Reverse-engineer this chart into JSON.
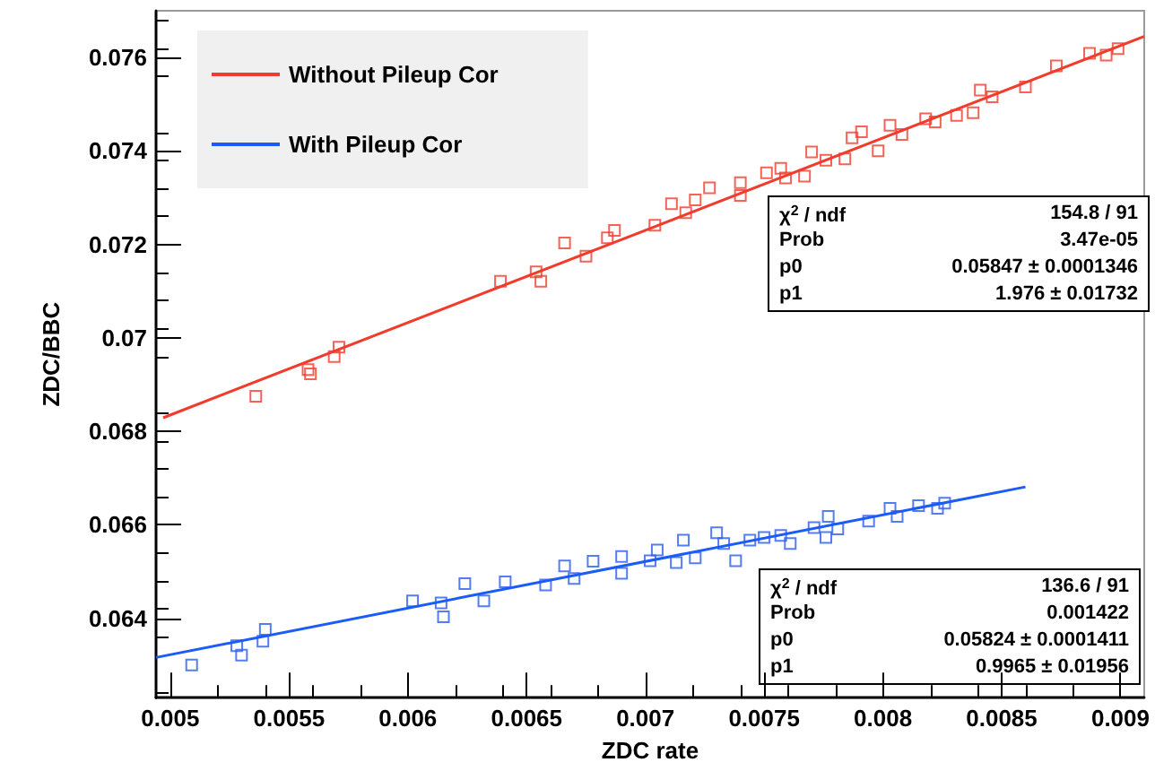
{
  "chart_data": {
    "type": "scatter",
    "xlabel": "ZDC rate",
    "ylabel": "ZDC/BBC",
    "xlim": [
      0.00494,
      0.0091
    ],
    "ylim": [
      0.0623,
      0.077
    ],
    "xticks": [
      0.005,
      0.0055,
      0.006,
      0.0065,
      0.007,
      0.0075,
      0.008,
      0.0085,
      0.009
    ],
    "yticks": [
      0.064,
      0.066,
      0.068,
      0.07,
      0.072,
      0.074,
      0.076
    ],
    "marker": "square",
    "grid": false,
    "legend": "top left",
    "annotations": [
      "χ$^{2}$ / ndf",
      "154.8 / 91",
      "Prob",
      "3.47e-05",
      "p0",
      "0.05847 ± 0.0001346",
      "p1",
      "1.976 ± 0.01732",
      "χ$^{2}$ / ndf",
      "136.6 / 91",
      "Prob",
      "0.001422",
      "p0",
      "0.05824 ± 0.0001411",
      "p1",
      "0.9965 ± 0.01956"
    ],
    "series": [
      {
        "color": "#f03c2c",
        "x": [
          0.00536,
          0.00558,
          0.00559,
          0.00569,
          0.00571,
          0.00639,
          0.00654,
          0.00656,
          0.00666,
          0.00675,
          0.00684,
          0.00687,
          0.00704,
          0.00711,
          0.00717,
          0.00721,
          0.00727,
          0.0074,
          0.0074,
          0.00751,
          0.00757,
          0.00759,
          0.00767,
          0.0077,
          0.00776,
          0.00784,
          0.00787,
          0.00791,
          0.00798,
          0.00803,
          0.00808,
          0.00818,
          0.00822,
          0.00831,
          0.00838,
          0.00841,
          0.00846,
          0.0086,
          0.00873,
          0.00887,
          0.00894,
          0.00899
        ],
        "values": [
          0.06875,
          0.06932,
          0.06923,
          0.0696,
          0.0698,
          0.07121,
          0.07141,
          0.07121,
          0.07203,
          0.07175,
          0.07214,
          0.0723,
          0.07241,
          0.07287,
          0.07268,
          0.07295,
          0.07321,
          0.07332,
          0.07305,
          0.07353,
          0.07363,
          0.07342,
          0.07346,
          0.07398,
          0.0738,
          0.07383,
          0.07428,
          0.07441,
          0.074,
          0.07455,
          0.07435,
          0.07469,
          0.07462,
          0.07476,
          0.07482,
          0.0753,
          0.07516,
          0.07537,
          0.07582,
          0.07609,
          0.07605,
          0.07619
        ]
      },
      {
        "color": "#2a5cf0",
        "x": [
          0.00509,
          0.00528,
          0.0053,
          0.00539,
          0.0054,
          0.00602,
          0.00614,
          0.00615,
          0.00624,
          0.00632,
          0.00641,
          0.00658,
          0.00666,
          0.0067,
          0.00678,
          0.0069,
          0.0069,
          0.00702,
          0.00705,
          0.00713,
          0.00716,
          0.00721,
          0.0073,
          0.00733,
          0.00738,
          0.00744,
          0.0075,
          0.00757,
          0.00761,
          0.00771,
          0.00777,
          0.00776,
          0.00781,
          0.00794,
          0.00803,
          0.00806,
          0.00815,
          0.00823,
          0.00826
        ],
        "values": [
          0.063,
          0.06341,
          0.06321,
          0.06351,
          0.06376,
          0.06437,
          0.06433,
          0.06403,
          0.06474,
          0.06437,
          0.06478,
          0.06471,
          0.06512,
          0.06485,
          0.06522,
          0.06532,
          0.06496,
          0.06523,
          0.06546,
          0.06519,
          0.06567,
          0.06529,
          0.06583,
          0.0656,
          0.06523,
          0.06567,
          0.06573,
          0.06577,
          0.0656,
          0.06594,
          0.06618,
          0.06573,
          0.06591,
          0.06608,
          0.06635,
          0.06618,
          0.06641,
          0.06635,
          0.06646
        ]
      },
      {
        "type": "line",
        "name": "Without Pileup Cor",
        "color": "#f03c2c",
        "marker": "none",
        "x": [
          0.00497,
          0.0091
        ],
        "values": [
          0.06829,
          0.07645
        ]
      },
      {
        "type": "line",
        "name": "With Pileup Cor",
        "color": "#1a5cf5",
        "marker": "none",
        "x": [
          0.00494,
          0.0086
        ],
        "values": [
          0.06316,
          0.06681
        ]
      }
    ]
  }
}
